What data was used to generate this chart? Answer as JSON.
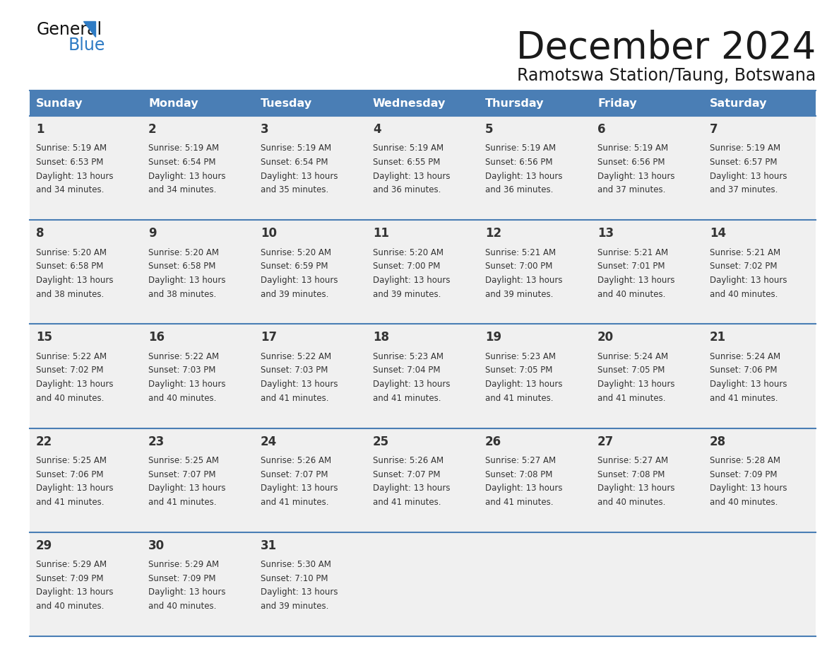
{
  "title": "December 2024",
  "subtitle": "Ramotswa Station/Taung, Botswana",
  "header_color": "#4a7eb5",
  "header_text_color": "#ffffff",
  "bg_color": "#ffffff",
  "cell_bg": "#f0f0f0",
  "border_color": "#4a7eb5",
  "text_color": "#333333",
  "days_of_week": [
    "Sunday",
    "Monday",
    "Tuesday",
    "Wednesday",
    "Thursday",
    "Friday",
    "Saturday"
  ],
  "calendar_data": [
    [
      {
        "day": "1",
        "sunrise": "5:19 AM",
        "sunset": "6:53 PM",
        "daylight_min": "34"
      },
      {
        "day": "2",
        "sunrise": "5:19 AM",
        "sunset": "6:54 PM",
        "daylight_min": "34"
      },
      {
        "day": "3",
        "sunrise": "5:19 AM",
        "sunset": "6:54 PM",
        "daylight_min": "35"
      },
      {
        "day": "4",
        "sunrise": "5:19 AM",
        "sunset": "6:55 PM",
        "daylight_min": "36"
      },
      {
        "day": "5",
        "sunrise": "5:19 AM",
        "sunset": "6:56 PM",
        "daylight_min": "36"
      },
      {
        "day": "6",
        "sunrise": "5:19 AM",
        "sunset": "6:56 PM",
        "daylight_min": "37"
      },
      {
        "day": "7",
        "sunrise": "5:19 AM",
        "sunset": "6:57 PM",
        "daylight_min": "37"
      }
    ],
    [
      {
        "day": "8",
        "sunrise": "5:20 AM",
        "sunset": "6:58 PM",
        "daylight_min": "38"
      },
      {
        "day": "9",
        "sunrise": "5:20 AM",
        "sunset": "6:58 PM",
        "daylight_min": "38"
      },
      {
        "day": "10",
        "sunrise": "5:20 AM",
        "sunset": "6:59 PM",
        "daylight_min": "39"
      },
      {
        "day": "11",
        "sunrise": "5:20 AM",
        "sunset": "7:00 PM",
        "daylight_min": "39"
      },
      {
        "day": "12",
        "sunrise": "5:21 AM",
        "sunset": "7:00 PM",
        "daylight_min": "39"
      },
      {
        "day": "13",
        "sunrise": "5:21 AM",
        "sunset": "7:01 PM",
        "daylight_min": "40"
      },
      {
        "day": "14",
        "sunrise": "5:21 AM",
        "sunset": "7:02 PM",
        "daylight_min": "40"
      }
    ],
    [
      {
        "day": "15",
        "sunrise": "5:22 AM",
        "sunset": "7:02 PM",
        "daylight_min": "40"
      },
      {
        "day": "16",
        "sunrise": "5:22 AM",
        "sunset": "7:03 PM",
        "daylight_min": "40"
      },
      {
        "day": "17",
        "sunrise": "5:22 AM",
        "sunset": "7:03 PM",
        "daylight_min": "41"
      },
      {
        "day": "18",
        "sunrise": "5:23 AM",
        "sunset": "7:04 PM",
        "daylight_min": "41"
      },
      {
        "day": "19",
        "sunrise": "5:23 AM",
        "sunset": "7:05 PM",
        "daylight_min": "41"
      },
      {
        "day": "20",
        "sunrise": "5:24 AM",
        "sunset": "7:05 PM",
        "daylight_min": "41"
      },
      {
        "day": "21",
        "sunrise": "5:24 AM",
        "sunset": "7:06 PM",
        "daylight_min": "41"
      }
    ],
    [
      {
        "day": "22",
        "sunrise": "5:25 AM",
        "sunset": "7:06 PM",
        "daylight_min": "41"
      },
      {
        "day": "23",
        "sunrise": "5:25 AM",
        "sunset": "7:07 PM",
        "daylight_min": "41"
      },
      {
        "day": "24",
        "sunrise": "5:26 AM",
        "sunset": "7:07 PM",
        "daylight_min": "41"
      },
      {
        "day": "25",
        "sunrise": "5:26 AM",
        "sunset": "7:07 PM",
        "daylight_min": "41"
      },
      {
        "day": "26",
        "sunrise": "5:27 AM",
        "sunset": "7:08 PM",
        "daylight_min": "41"
      },
      {
        "day": "27",
        "sunrise": "5:27 AM",
        "sunset": "7:08 PM",
        "daylight_min": "40"
      },
      {
        "day": "28",
        "sunrise": "5:28 AM",
        "sunset": "7:09 PM",
        "daylight_min": "40"
      }
    ],
    [
      {
        "day": "29",
        "sunrise": "5:29 AM",
        "sunset": "7:09 PM",
        "daylight_min": "40"
      },
      {
        "day": "30",
        "sunrise": "5:29 AM",
        "sunset": "7:09 PM",
        "daylight_min": "40"
      },
      {
        "day": "31",
        "sunrise": "5:30 AM",
        "sunset": "7:10 PM",
        "daylight_min": "39"
      },
      null,
      null,
      null,
      null
    ]
  ]
}
